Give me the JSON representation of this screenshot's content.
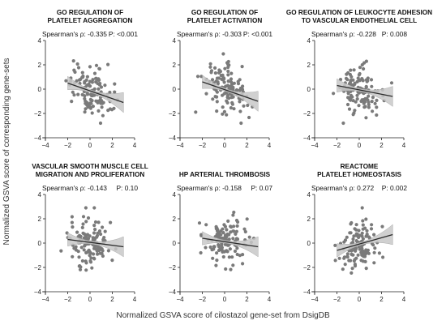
{
  "figure": {
    "xlabel": "Normalized GSVA score of cilostazol gene-set from DsigDB",
    "ylabel": "Normalized GSVA score of corresponding gene-sets"
  },
  "chart_data": [
    {
      "type": "scatter",
      "title_lines": [
        "GO REGULATION OF",
        "PLATELET AGGREGATION"
      ],
      "stat_rho_label": "Spearman's ρ: -0.335",
      "stat_p_label": "P: <0.001",
      "rho": -0.335,
      "p_value": "<0.001",
      "xlim": [
        -4,
        4
      ],
      "ylim": [
        -4,
        4
      ],
      "xticks": [
        "−4",
        "−2",
        "0",
        "2",
        "4"
      ],
      "yticks": [
        "−4",
        "−2",
        "0",
        "2",
        "4"
      ],
      "fit_line": {
        "x": [
          -2,
          3
        ],
        "y": [
          0.5,
          -1.1
        ]
      }
    },
    {
      "type": "scatter",
      "title_lines": [
        "GO REGULATION OF",
        "PLATELET ACTIVATION"
      ],
      "stat_rho_label": "Spearman's ρ: -0.303",
      "stat_p_label": "P: <0.001",
      "rho": -0.303,
      "p_value": "<0.001",
      "xlim": [
        -4,
        4
      ],
      "ylim": [
        -4,
        4
      ],
      "xticks": [
        "−4",
        "−2",
        "0",
        "2",
        "4"
      ],
      "yticks": [
        "−4",
        "−2",
        "0",
        "2",
        "4"
      ],
      "fit_line": {
        "x": [
          -2,
          3
        ],
        "y": [
          0.6,
          -1.0
        ]
      }
    },
    {
      "type": "scatter",
      "title_lines": [
        "GO REGULATION OF LEUKOCYTE ADHESION",
        "TO VASCULAR ENDOTHELIAL CELL"
      ],
      "stat_rho_label": "Spearman's ρ: -0.228",
      "stat_p_label": "P: 0.008",
      "rho": -0.228,
      "p_value": "0.008",
      "xlim": [
        -4,
        4
      ],
      "ylim": [
        -4,
        4
      ],
      "xticks": [
        "−4",
        "−2",
        "0",
        "2",
        "4"
      ],
      "yticks": [
        "−4",
        "−2",
        "0",
        "2",
        "4"
      ],
      "fit_line": {
        "x": [
          -2,
          3
        ],
        "y": [
          0.3,
          -0.6
        ]
      }
    },
    {
      "type": "scatter",
      "title_lines": [
        "VASCULAR SMOOTH MUSCLE CELL",
        "MIGRATION AND PROLIFERATION"
      ],
      "stat_rho_label": "Spearman's ρ: -0.143",
      "stat_p_label": "P: 0.10",
      "rho": -0.143,
      "p_value": "0.10",
      "xlim": [
        -4,
        4
      ],
      "ylim": [
        -4,
        4
      ],
      "xticks": [
        "−4",
        "−2",
        "0",
        "2",
        "4"
      ],
      "yticks": [
        "−4",
        "−2",
        "0",
        "2",
        "4"
      ],
      "fit_line": {
        "x": [
          -2,
          3
        ],
        "y": [
          0.3,
          -0.3
        ]
      }
    },
    {
      "type": "scatter",
      "title_lines": [
        "HP ARTERIAL THROMBOSIS"
      ],
      "stat_rho_label": "Spearman's ρ: -0.158",
      "stat_p_label": "P: 0.07",
      "rho": -0.158,
      "p_value": "0.07",
      "xlim": [
        -4,
        4
      ],
      "ylim": [
        -4,
        4
      ],
      "xticks": [
        "−4",
        "−2",
        "0",
        "2",
        "4"
      ],
      "yticks": [
        "−4",
        "−2",
        "0",
        "2",
        "4"
      ],
      "fit_line": {
        "x": [
          -2,
          3
        ],
        "y": [
          0.4,
          -0.3
        ]
      }
    },
    {
      "type": "scatter",
      "title_lines": [
        "REACTOME",
        "PLATELET HOMEOSTASIS"
      ],
      "stat_rho_label": "Spearman's ρ: 0.272",
      "stat_p_label": "P: 0.002",
      "rho": 0.272,
      "p_value": "0.002",
      "xlim": [
        -4,
        4
      ],
      "ylim": [
        -4,
        4
      ],
      "xticks": [
        "−4",
        "−2",
        "0",
        "2",
        "4"
      ],
      "yticks": [
        "−4",
        "−2",
        "0",
        "2",
        "4"
      ],
      "fit_line": {
        "x": [
          -2,
          3
        ],
        "y": [
          -0.6,
          0.7
        ]
      }
    }
  ],
  "colors": {
    "points": "#7a7a7a",
    "fit_line": "#2b2b2b",
    "confidence_band": "#c8c8c8"
  }
}
